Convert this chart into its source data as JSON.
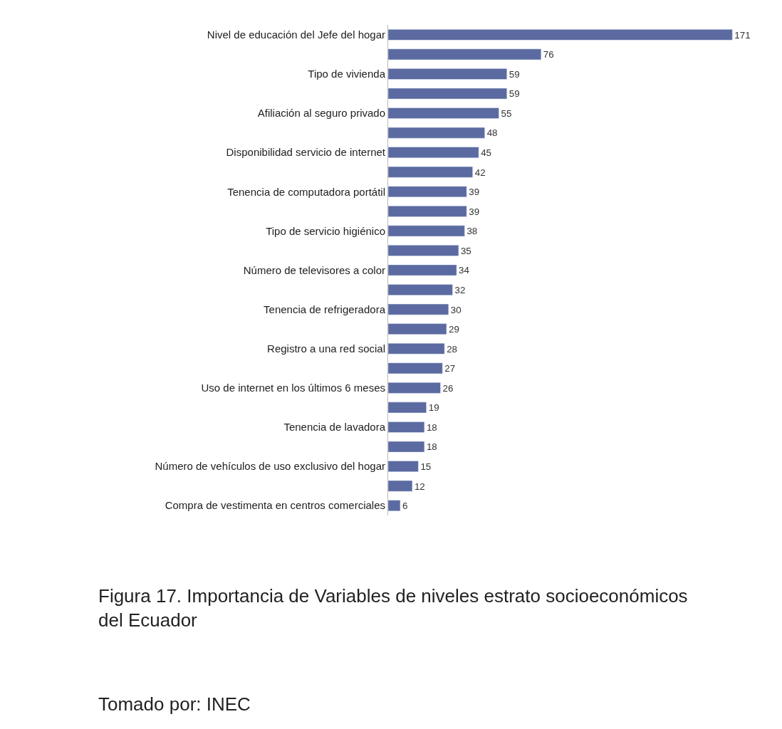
{
  "chart_data": {
    "type": "bar",
    "orientation": "horizontal",
    "categories": [
      "Nivel de educación del Jefe del hogar",
      null,
      "Tipo de vivienda",
      null,
      "Afiliación al seguro privado",
      null,
      "Disponibilidad servicio de internet",
      null,
      "Tenencia de computadora portátil",
      null,
      "Tipo de servicio higiénico",
      null,
      "Número de televisores a color",
      null,
      "Tenencia de refrigeradora",
      null,
      "Registro a una red social",
      null,
      "Uso de internet en los últimos 6 meses",
      null,
      "Tenencia de lavadora",
      null,
      "Número de vehículos de uso exclusivo del hogar",
      null,
      "Compra de vestimenta en centros comerciales"
    ],
    "values": [
      171,
      76,
      59,
      59,
      55,
      48,
      45,
      42,
      39,
      39,
      38,
      35,
      34,
      32,
      30,
      29,
      28,
      27,
      26,
      19,
      18,
      18,
      15,
      12,
      6
    ],
    "color": "#5b6aa0",
    "data_labels": true,
    "legend": false,
    "annotations": [
      "Figura 17. Importancia de Variables de niveles estrato socioeconómicos del Ecuador",
      "Tomado por: INEC"
    ]
  }
}
